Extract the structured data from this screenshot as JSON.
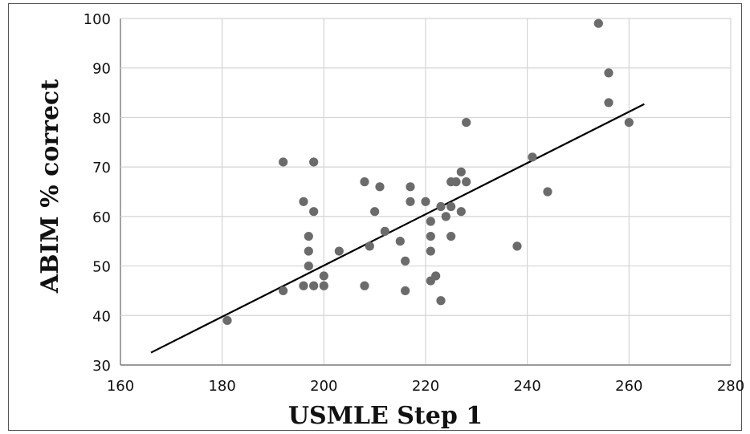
{
  "chart_data": {
    "type": "scatter",
    "title": "",
    "xlabel": "USMLE Step 1",
    "ylabel": "ABIM % correct",
    "xlim": [
      160,
      280
    ],
    "ylim": [
      30,
      100
    ],
    "x_ticks": [
      "160",
      "180",
      "200",
      "220",
      "240",
      "260",
      "280"
    ],
    "y_ticks": [
      "30",
      "40",
      "50",
      "60",
      "70",
      "80",
      "90",
      "100"
    ],
    "grid": true,
    "legend": "none",
    "marker_color": "#6b6b6b",
    "line_color": "#000000",
    "trendline": {
      "type": "linear",
      "x": [
        166,
        263
      ],
      "y": [
        32.5,
        82.7
      ]
    },
    "points": [
      {
        "x": 181,
        "y": 39
      },
      {
        "x": 192,
        "y": 71
      },
      {
        "x": 192,
        "y": 45
      },
      {
        "x": 196,
        "y": 63
      },
      {
        "x": 196,
        "y": 46
      },
      {
        "x": 197,
        "y": 56
      },
      {
        "x": 197,
        "y": 53
      },
      {
        "x": 197,
        "y": 50
      },
      {
        "x": 198,
        "y": 71
      },
      {
        "x": 198,
        "y": 61
      },
      {
        "x": 198,
        "y": 46
      },
      {
        "x": 200,
        "y": 48
      },
      {
        "x": 200,
        "y": 46
      },
      {
        "x": 203,
        "y": 53
      },
      {
        "x": 208,
        "y": 67
      },
      {
        "x": 208,
        "y": 46
      },
      {
        "x": 209,
        "y": 54
      },
      {
        "x": 210,
        "y": 61
      },
      {
        "x": 211,
        "y": 66
      },
      {
        "x": 212,
        "y": 57
      },
      {
        "x": 215,
        "y": 55
      },
      {
        "x": 216,
        "y": 51
      },
      {
        "x": 216,
        "y": 45
      },
      {
        "x": 217,
        "y": 66
      },
      {
        "x": 217,
        "y": 63
      },
      {
        "x": 220,
        "y": 63
      },
      {
        "x": 221,
        "y": 59
      },
      {
        "x": 221,
        "y": 56
      },
      {
        "x": 221,
        "y": 53
      },
      {
        "x": 221,
        "y": 47
      },
      {
        "x": 222,
        "y": 48
      },
      {
        "x": 223,
        "y": 62
      },
      {
        "x": 223,
        "y": 43
      },
      {
        "x": 224,
        "y": 60
      },
      {
        "x": 225,
        "y": 67
      },
      {
        "x": 225,
        "y": 62
      },
      {
        "x": 225,
        "y": 56
      },
      {
        "x": 226,
        "y": 67
      },
      {
        "x": 227,
        "y": 69
      },
      {
        "x": 227,
        "y": 61
      },
      {
        "x": 228,
        "y": 79
      },
      {
        "x": 228,
        "y": 67
      },
      {
        "x": 238,
        "y": 54
      },
      {
        "x": 241,
        "y": 72
      },
      {
        "x": 244,
        "y": 65
      },
      {
        "x": 254,
        "y": 99
      },
      {
        "x": 256,
        "y": 89
      },
      {
        "x": 256,
        "y": 83
      },
      {
        "x": 260,
        "y": 79
      }
    ]
  }
}
